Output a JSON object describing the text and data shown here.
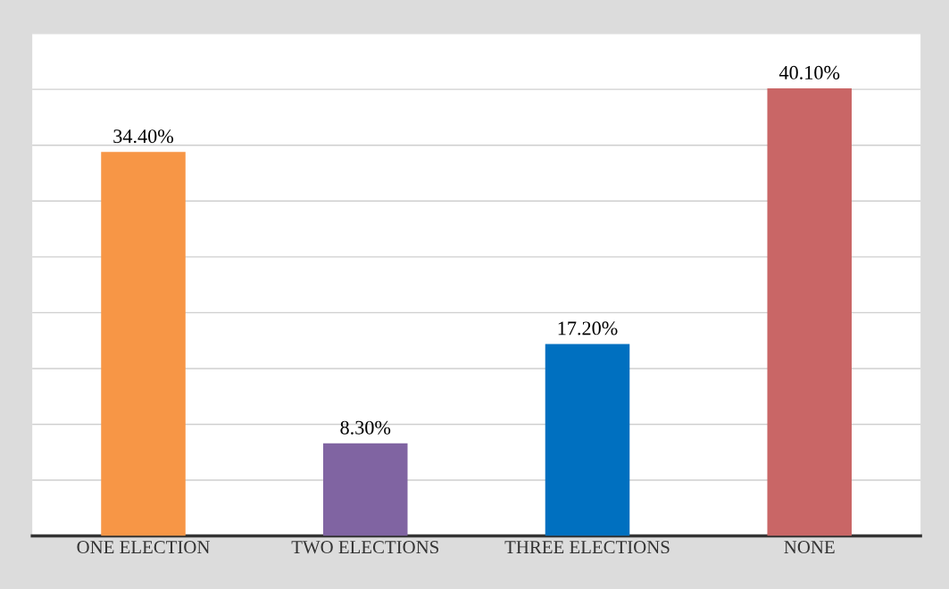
{
  "chart_data": {
    "type": "bar",
    "categories": [
      "ONE ELECTION",
      "TWO ELECTIONS",
      "THREE ELECTIONS",
      "NONE"
    ],
    "values": [
      34.4,
      8.3,
      17.2,
      40.1
    ],
    "colors": [
      "#f79646",
      "#8064a2",
      "#0070c0",
      "#c96666"
    ],
    "value_labels": [
      "34.40%",
      "8.30%",
      "17.20%",
      "40.10%"
    ],
    "ylim": [
      0,
      45
    ],
    "yticks": [
      {
        "value": 0,
        "label": null
      },
      {
        "value": 5,
        "label": null
      },
      {
        "value": 10,
        "label": null
      },
      {
        "value": 15,
        "label": null
      },
      {
        "value": 20,
        "label": null
      },
      {
        "value": 25,
        "label": null
      },
      {
        "value": 30,
        "label": null
      },
      {
        "value": 35,
        "label": null
      },
      {
        "value": 40,
        "label": null
      },
      {
        "value": 45,
        "label": null
      }
    ],
    "tick_labels": "x",
    "grid": "y",
    "legend": false
  }
}
